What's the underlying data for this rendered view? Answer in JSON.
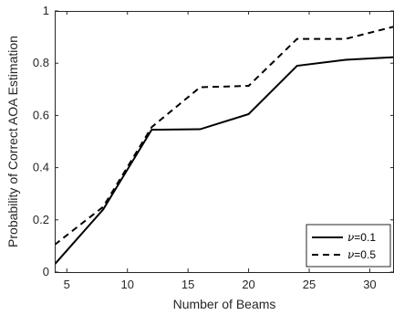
{
  "chart_data": {
    "type": "line",
    "title": "",
    "xlabel": "Number of Beams",
    "ylabel": "Probability of Correct AOA Estimation",
    "xlim": [
      4,
      32
    ],
    "ylim": [
      0,
      1
    ],
    "xticks": [
      5,
      10,
      15,
      20,
      25,
      30
    ],
    "yticks": [
      0,
      0.2,
      0.4,
      0.6,
      0.8,
      1
    ],
    "grid": false,
    "legend_position": "bottom-right",
    "series": [
      {
        "name_symbol": "ν",
        "name_value": "=0.1",
        "style": "solid",
        "color": "#000000",
        "x": [
          4,
          8,
          12,
          16,
          20,
          24,
          28,
          32
        ],
        "y": [
          0.03,
          0.24,
          0.545,
          0.547,
          0.605,
          0.79,
          0.813,
          0.823
        ]
      },
      {
        "name_symbol": "ν",
        "name_value": "=0.5",
        "style": "dashed",
        "color": "#000000",
        "x": [
          4,
          8,
          12,
          16,
          20,
          24,
          28,
          32
        ],
        "y": [
          0.105,
          0.25,
          0.555,
          0.708,
          0.713,
          0.893,
          0.893,
          0.94
        ]
      }
    ]
  }
}
